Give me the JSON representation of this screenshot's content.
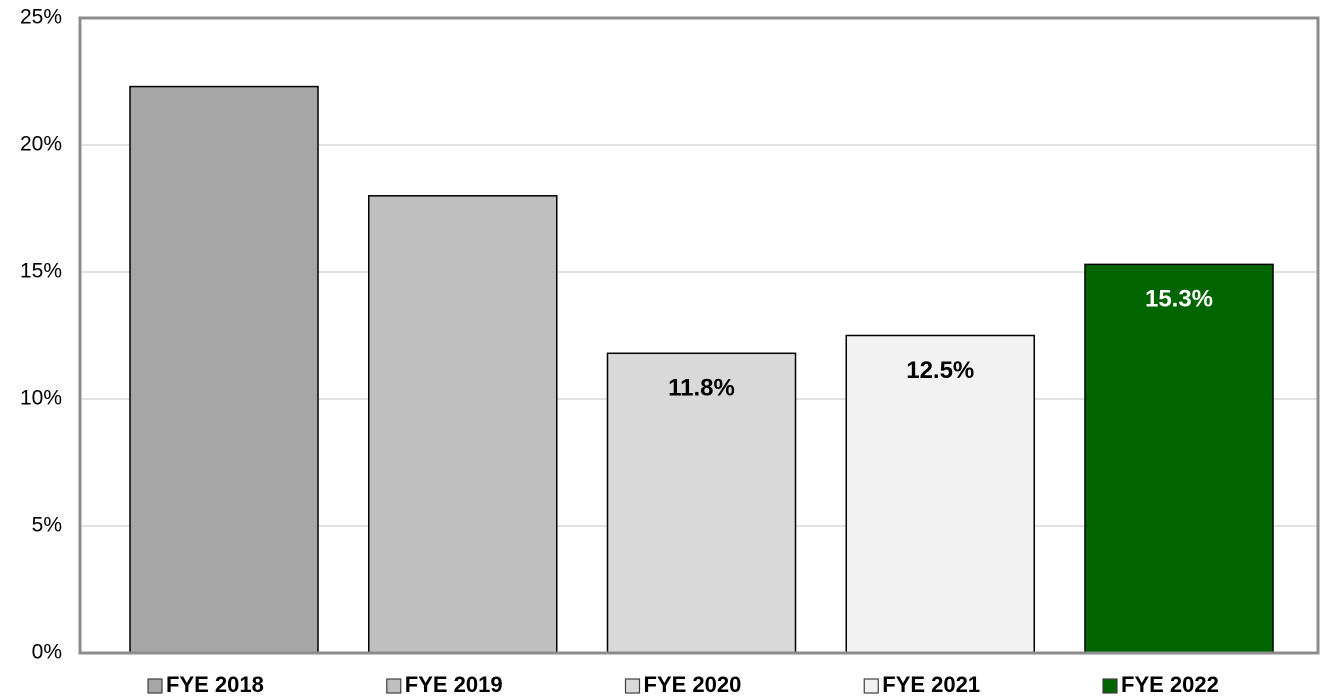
{
  "chart_data": {
    "type": "bar",
    "series": [
      {
        "name": "FYE 2018",
        "color": "#a6a6a6",
        "values": [
          22.3
        ]
      },
      {
        "name": "FYE 2019",
        "color": "#bfbfbf",
        "values": [
          18.0
        ]
      },
      {
        "name": "FYE 2020",
        "color": "#d9d9d9",
        "values": [
          11.8
        ],
        "value_labels": [
          "11.8%"
        ]
      },
      {
        "name": "FYE 2021",
        "color": "#f2f2f2",
        "values": [
          12.5
        ],
        "value_labels": [
          "12.5%"
        ]
      },
      {
        "name": "FYE 2022",
        "color": "#006400",
        "values": [
          15.3
        ],
        "value_labels": [
          "15.3%"
        ]
      }
    ],
    "ylim": [
      0,
      25
    ],
    "yticks": [
      {
        "value": 0,
        "label": "0%"
      },
      {
        "value": 5,
        "label": "5%"
      },
      {
        "value": 10,
        "label": "10%"
      },
      {
        "value": 15,
        "label": "15%"
      },
      {
        "value": 20,
        "label": "20%"
      },
      {
        "value": 25,
        "label": "25%"
      }
    ],
    "grid": true,
    "legend": "bottom"
  }
}
